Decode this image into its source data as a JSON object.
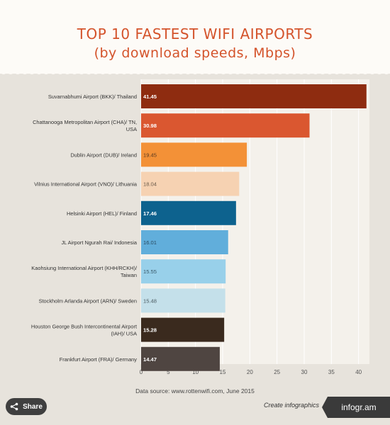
{
  "title_line1": "TOP 10 FASTEST WIFI AIRPORTS",
  "title_line2": "(by download speeds, Mbps)",
  "source": "Data source: www.rottenwifi.com, June 2015",
  "share_label": "Share",
  "create_label": "Create infographics",
  "logo_text": "infogr.am",
  "chart_data": {
    "type": "bar",
    "orientation": "horizontal",
    "title": "TOP 10 FASTEST WIFI AIRPORTS",
    "subtitle": "(by download speeds, Mbps)",
    "categories": [
      "Suvarnabhumi Airport (BKK)/ Thailand",
      "Chattanooga Metropolitan Airport (CHA)/ TN, USA",
      "Dublin Airport (DUB)/ Ireland",
      "Vilnius International Airport (VNO)/ Lithuania",
      "Helsinki Airport (HEL)/ Finland",
      "JL Airport Ngurah Rai/ Indonesia",
      "Kaohsiung International Airport (KHH/RCKH)/ Taiwan",
      "Stockholm Arlanda Airport (ARN)/ Sweden",
      "Houston George Bush Intercontinental Airport (IAH)/ USA",
      "Frankfurt Airport (FRA)/ Germany"
    ],
    "category_lines": [
      [
        "Suvarnabhumi Airport (BKK)/ Thailand"
      ],
      [
        "Chattanooga Metropolitan Airport (CHA)/ TN,",
        "USA"
      ],
      [
        "Dublin Airport (DUB)/ Ireland"
      ],
      [
        "Vilnius International Airport (VNO)/ Lithuania"
      ],
      [
        "Helsinki Airport (HEL)/ Finland"
      ],
      [
        "JL Airport Ngurah Rai/ Indonesia"
      ],
      [
        "Kaohsiung International Airport (KHH/RCKH)/",
        "Taiwan"
      ],
      [
        "Stockholm Arlanda Airport (ARN)/ Sweden"
      ],
      [
        "Houston George Bush Intercontinental Airport",
        "(IAH)/ USA"
      ],
      [
        "Frankfurt Airport (FRA)/ Germany"
      ]
    ],
    "values": [
      41.45,
      30.98,
      19.45,
      18.04,
      17.46,
      16.01,
      15.55,
      15.48,
      15.28,
      14.47
    ],
    "value_labels": [
      "41.45",
      "30.98",
      "19.45",
      "18.04",
      "17.46",
      "16.01",
      "15.55",
      "15.48",
      "15.28",
      "14.47"
    ],
    "colors": [
      "#8e2c10",
      "#da5730",
      "#f39137",
      "#f6d2b2",
      "#0d628e",
      "#61aedb",
      "#98d0ea",
      "#c4e0ea",
      "#3a2a1e",
      "#4f4541"
    ],
    "label_colors": [
      "#ffffff",
      "#ffffff",
      "#5a3a20",
      "#6a5a4a",
      "#ffffff",
      "#2a4a60",
      "#3a5a6a",
      "#4a5a60",
      "#ffffff",
      "#ffffff"
    ],
    "xlim": [
      0,
      42
    ],
    "xticks": [
      0,
      5,
      10,
      15,
      20,
      25,
      30,
      35,
      40
    ],
    "grid": true
  }
}
